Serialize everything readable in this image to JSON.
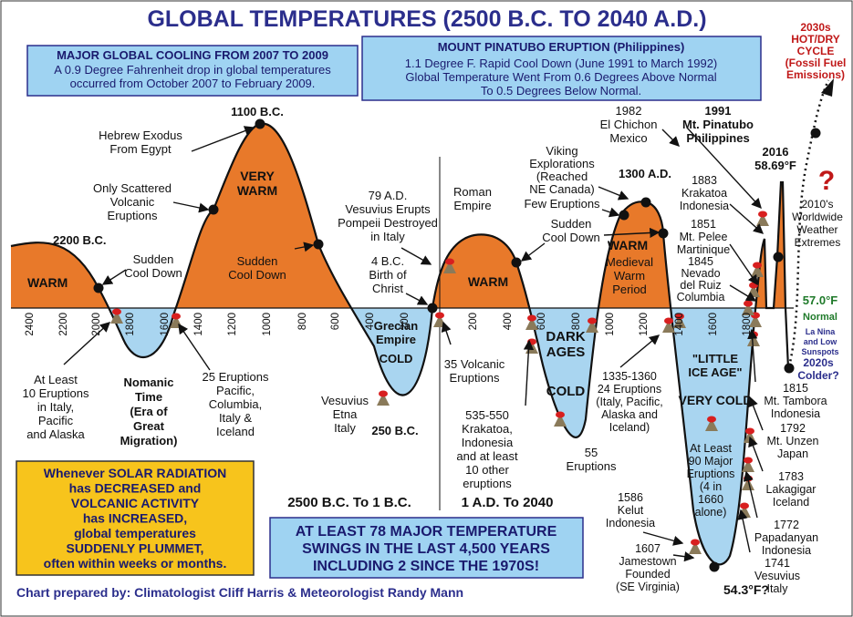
{
  "title": "GLOBAL TEMPERATURES (2500 B.C. TO 2040 A.D.)",
  "boxes": {
    "cooling": {
      "heading": "MAJOR GLOBAL COOLING FROM 2007 TO 2009",
      "lines": [
        "A 0.9 Degree Fahrenheit drop in global temperatures",
        "occurred from October 2007 to February 2009."
      ]
    },
    "pinatubo": {
      "heading": "MOUNT PINATUBO ERUPTION (Philippines)",
      "lines": [
        "1.1 Degree F. Rapid Cool Down (June 1991 to March 1992)",
        "Global Temperature Went From 0.6 Degrees Above Normal",
        "To 0.5 Degrees Below Normal."
      ]
    },
    "solar": {
      "lines": [
        "Whenever SOLAR RADIATION",
        "has DECREASED and",
        "VOLCANIC ACTIVITY",
        "has INCREASED,",
        "global temperatures",
        "SUDDENLY PLUMMET,",
        "often within weeks or months."
      ]
    },
    "swings": {
      "lines": [
        "AT LEAST 78 MAJOR TEMPERATURE",
        "SWINGS IN THE LAST 4,500 YEARS",
        "INCLUDING 2 SINCE THE 1970S!"
      ]
    }
  },
  "eras": {
    "bc": "2500 B.C. To 1 B.C.",
    "ad": "1 A.D. To 2040"
  },
  "credit": "Chart prepared by: Climatologist Cliff Harris & Meteorologist Randy Mann",
  "axis": {
    "bc_ticks": [
      "2400",
      "2200",
      "2000",
      "1800",
      "1600",
      "1400",
      "1200",
      "1000",
      "800",
      "600",
      "400",
      "200"
    ],
    "ad_ticks": [
      "200",
      "400",
      "600",
      "800",
      "1000",
      "1200",
      "1400",
      "1600",
      "1800"
    ]
  },
  "warm_labels": {
    "w1": "WARM",
    "very_warm": [
      "VERY",
      "WARM"
    ],
    "w_roman": "WARM",
    "w_medieval": "WARM",
    "medieval_period": [
      "Medieval",
      "Warm",
      "Period"
    ]
  },
  "cold_labels": {
    "nomanic": [
      "Nomanic",
      "Time",
      "(Era of",
      "Great",
      "Migration)"
    ],
    "grecian": [
      "Grecian",
      "Empire"
    ],
    "cold1": "COLD",
    "dark_ages": [
      "DARK",
      "AGES"
    ],
    "cold2": "COLD",
    "lia": [
      "\"LITTLE",
      "ICE AGE\""
    ],
    "very_cold": "VERY COLD",
    "lia_eruptions": [
      "At Least",
      "90 Major",
      "Eruptions",
      "(4 in",
      "1660",
      "alone)"
    ]
  },
  "annotations": {
    "bc2200": "2200 B.C.",
    "sudden1": [
      "Sudden",
      "Cool Down"
    ],
    "hebrew": [
      "Hebrew Exodus",
      "From Egypt"
    ],
    "bc1100": "1100 B.C.",
    "scattered": [
      "Only Scattered",
      "Volcanic",
      "Eruptions"
    ],
    "sudden2": [
      "Sudden",
      "Cool Down"
    ],
    "vesuvius79": [
      "79 A.D.",
      "Vesuvius Erupts",
      "Pompeii Destroyed",
      "in Italy"
    ],
    "christ": [
      "4 B.C.",
      "Birth of",
      "Christ"
    ],
    "roman": [
      "Roman",
      "Empire"
    ],
    "viking": [
      "Viking",
      "Explorations",
      "(Reached",
      "NE Canada)"
    ],
    "ad1300": "1300 A.D.",
    "few": "Few Eruptions",
    "sudden3": [
      "Sudden",
      "Cool Down"
    ],
    "chichon": [
      "1982",
      "El Chichon",
      "Mexico"
    ],
    "pinatubo1991": [
      "1991",
      "Mt. Pinatubo",
      "Philippines"
    ],
    "y2016": [
      "2016",
      "58.69°F"
    ],
    "hotdry": [
      "2030s",
      "HOT/DRY",
      "CYCLE",
      "(Fossil Fuel",
      "Emissions)"
    ],
    "question": "?",
    "y2010s": [
      "2010's",
      "Worldwide",
      "Weather",
      "Extremes"
    ],
    "normal_temp": "57.0°F",
    "normal": "Normal",
    "lanina": [
      "La Nina",
      "and Low",
      "Sunspots"
    ],
    "y2020s": [
      "2020s",
      "Colder?"
    ],
    "krakatoa1883": [
      "1883",
      "Krakatoa",
      "Indonesia"
    ],
    "pelee": [
      "1851",
      "Mt. Pelee",
      "Martinique"
    ],
    "ruiz": [
      "1845",
      "Nevado",
      "del Ruiz",
      "Columbia"
    ],
    "at_least10": [
      "At Least",
      "10 Eruptions",
      "in Italy,",
      "Pacific",
      "and Alaska"
    ],
    "eruptions25": [
      "25 Eruptions",
      "Pacific,",
      "Columbia,",
      "Italy &",
      "Iceland"
    ],
    "vesuvius_etna": [
      "Vesuvius",
      "Etna",
      "Italy"
    ],
    "bc250": "250 B.C.",
    "volcanic35": [
      "35 Volcanic",
      "Eruptions"
    ],
    "krakatoa535": [
      "535-550",
      "Krakatoa,",
      "Indonesia",
      "and at least",
      "10 other",
      "eruptions"
    ],
    "eruptions55": [
      "55",
      "Eruptions"
    ],
    "eruptions1335": [
      "1335-1360",
      "24 Eruptions",
      "(Italy, Pacific,",
      "Alaska and",
      "Iceland)"
    ],
    "tambora": [
      "1815",
      "Mt. Tambora",
      "Indonesia"
    ],
    "unzen": [
      "1792",
      "Mt. Unzen",
      "Japan"
    ],
    "lakagigar": [
      "1783",
      "Lakagigar",
      "Iceland"
    ],
    "papadanyan": [
      "1772",
      "Papadanyan",
      "Indonesia"
    ],
    "vesuvius1741": [
      "1741",
      "Vesuvius",
      "Italy"
    ],
    "kelut": [
      "1586",
      "Kelut",
      "Indonesia"
    ],
    "jamestown": [
      "1607",
      "Jamestown",
      "Founded",
      "(SE Virginia)"
    ],
    "low_temp": "54.3°F?"
  },
  "colors": {
    "title": "#2b2e8c",
    "warm": "#e8792a",
    "cold": "#a9d5f0",
    "box": "#9fd3f2",
    "solar_box": "#f7c41c",
    "red": "#c01818",
    "credit": "#2b2e8c"
  }
}
